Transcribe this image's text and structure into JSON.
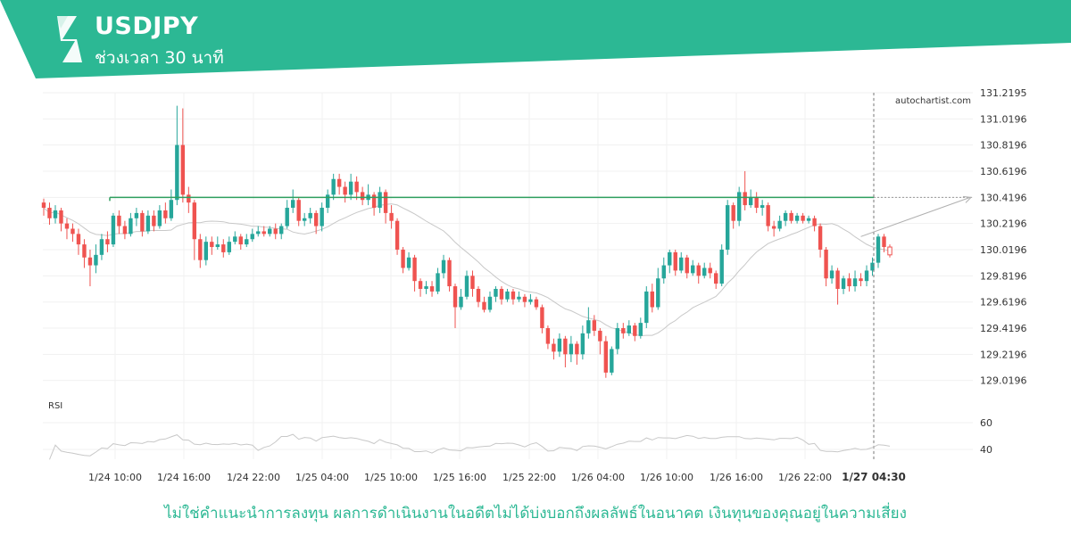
{
  "header": {
    "symbol": "USDJPY",
    "timeframe": "ช่วงเวลา 30 นาที",
    "accent_color": "#2cb894",
    "logo_icon": "autochartist-s-logo-icon"
  },
  "watermark": "autochartist.com",
  "disclaimer": "ไม่ใช่คำแนะนำการลงทุน ผลการดำเนินงานในอดีตไม่ได้บ่งบอกถึงผลลัพธ์ในอนาคต เงินทุนของคุณอยู่ในความเสี่ยง",
  "chart_data": {
    "type": "candlestick",
    "series_colors": {
      "up": "#26a69a",
      "down": "#ef5350",
      "ma": "#c8c8c8",
      "level": "#2e9e5e"
    },
    "y_axis": {
      "ticks": [
        131.2195,
        131.0196,
        130.8196,
        130.6196,
        130.4196,
        130.2196,
        130.0196,
        129.8196,
        129.6196,
        129.4196,
        129.2196,
        129.0196
      ],
      "range": [
        128.98,
        131.22
      ]
    },
    "x_axis": {
      "ticks": [
        "1/24 10:00",
        "1/24 16:00",
        "1/24 22:00",
        "1/25 04:00",
        "1/25 10:00",
        "1/25 16:00",
        "1/25 22:00",
        "1/26 04:00",
        "1/26 10:00",
        "1/26 16:00",
        "1/26 22:00",
        "1/27 04:30"
      ],
      "highlight": "1/27 04:30"
    },
    "resistance_level": 130.4196,
    "forecast_target": 130.4196,
    "rsi": {
      "label": "RSI",
      "ticks": [
        60,
        40
      ],
      "range": [
        30,
        70
      ]
    },
    "candles": [
      [
        130.38,
        130.34,
        130.41,
        130.28
      ],
      [
        130.34,
        130.26,
        130.38,
        130.21
      ],
      [
        130.26,
        130.32,
        130.36,
        130.22
      ],
      [
        130.32,
        130.22,
        130.34,
        130.16
      ],
      [
        130.22,
        130.18,
        130.26,
        130.1
      ],
      [
        130.18,
        130.14,
        130.22,
        130.08
      ],
      [
        130.14,
        130.06,
        130.18,
        129.98
      ],
      [
        130.06,
        129.96,
        130.1,
        129.88
      ],
      [
        129.96,
        129.9,
        130.02,
        129.74
      ],
      [
        129.9,
        129.98,
        130.06,
        129.84
      ],
      [
        129.98,
        130.1,
        130.14,
        129.94
      ],
      [
        130.1,
        130.06,
        130.16,
        130.0
      ],
      [
        130.06,
        130.28,
        130.3,
        130.04
      ],
      [
        130.28,
        130.2,
        130.32,
        130.14
      ],
      [
        130.2,
        130.14,
        130.24,
        130.1
      ],
      [
        130.14,
        130.26,
        130.3,
        130.12
      ],
      [
        130.26,
        130.3,
        130.34,
        130.2
      ],
      [
        130.3,
        130.16,
        130.32,
        130.12
      ],
      [
        130.16,
        130.28,
        130.32,
        130.14
      ],
      [
        130.28,
        130.2,
        130.32,
        130.16
      ],
      [
        130.2,
        130.32,
        130.36,
        130.18
      ],
      [
        130.32,
        130.26,
        130.38,
        130.22
      ],
      [
        130.26,
        130.4,
        130.48,
        130.24
      ],
      [
        130.4,
        130.82,
        131.12,
        130.36
      ],
      [
        130.82,
        130.44,
        131.1,
        130.38
      ],
      [
        130.44,
        130.38,
        130.5,
        130.3
      ],
      [
        130.38,
        130.1,
        130.4,
        129.94
      ],
      [
        130.1,
        129.94,
        130.14,
        129.88
      ],
      [
        129.94,
        130.08,
        130.12,
        129.9
      ],
      [
        130.08,
        130.04,
        130.12,
        129.98
      ],
      [
        130.04,
        130.06,
        130.12,
        130.02
      ],
      [
        130.06,
        130.0,
        130.1,
        129.96
      ],
      [
        130.0,
        130.08,
        130.12,
        129.98
      ],
      [
        130.08,
        130.12,
        130.16,
        130.06
      ],
      [
        130.12,
        130.06,
        130.14,
        130.02
      ],
      [
        130.06,
        130.1,
        130.14,
        130.04
      ],
      [
        130.1,
        130.14,
        130.18,
        130.08
      ],
      [
        130.14,
        130.16,
        130.2,
        130.12
      ],
      [
        130.16,
        130.14,
        130.2,
        130.12
      ],
      [
        130.14,
        130.18,
        130.2,
        130.12
      ],
      [
        130.18,
        130.14,
        130.22,
        130.1
      ],
      [
        130.14,
        130.2,
        130.22,
        130.1
      ],
      [
        130.2,
        130.34,
        130.4,
        130.18
      ],
      [
        130.34,
        130.4,
        130.48,
        130.3
      ],
      [
        130.4,
        130.24,
        130.42,
        130.2
      ],
      [
        130.24,
        130.26,
        130.3,
        130.2
      ],
      [
        130.26,
        130.3,
        130.34,
        130.22
      ],
      [
        130.3,
        130.2,
        130.32,
        130.14
      ],
      [
        130.2,
        130.34,
        130.38,
        130.16
      ],
      [
        130.34,
        130.44,
        130.48,
        130.3
      ],
      [
        130.44,
        130.56,
        130.6,
        130.4
      ],
      [
        130.56,
        130.5,
        130.6,
        130.44
      ],
      [
        130.5,
        130.44,
        130.54,
        130.38
      ],
      [
        130.44,
        130.54,
        130.6,
        130.4
      ],
      [
        130.54,
        130.46,
        130.58,
        130.4
      ],
      [
        130.46,
        130.4,
        130.5,
        130.36
      ],
      [
        130.4,
        130.44,
        130.52,
        130.36
      ],
      [
        130.44,
        130.34,
        130.46,
        130.28
      ],
      [
        130.34,
        130.46,
        130.5,
        130.3
      ],
      [
        130.46,
        130.3,
        130.48,
        130.22
      ],
      [
        130.3,
        130.24,
        130.36,
        130.18
      ],
      [
        130.24,
        130.02,
        130.26,
        129.98
      ],
      [
        130.02,
        129.88,
        130.04,
        129.84
      ],
      [
        129.88,
        129.96,
        130.0,
        129.86
      ],
      [
        129.96,
        129.78,
        129.98,
        129.7
      ],
      [
        129.78,
        129.72,
        129.8,
        129.66
      ],
      [
        129.72,
        129.74,
        129.78,
        129.68
      ],
      [
        129.74,
        129.7,
        129.78,
        129.66
      ],
      [
        129.7,
        129.84,
        129.88,
        129.68
      ],
      [
        129.84,
        129.94,
        129.98,
        129.8
      ],
      [
        129.94,
        129.74,
        129.96,
        129.7
      ],
      [
        129.74,
        129.58,
        129.76,
        129.42
      ],
      [
        129.58,
        129.66,
        129.72,
        129.56
      ],
      [
        129.66,
        129.82,
        129.86,
        129.64
      ],
      [
        129.82,
        129.72,
        129.86,
        129.66
      ],
      [
        129.72,
        129.62,
        129.74,
        129.58
      ],
      [
        129.62,
        129.56,
        129.66,
        129.54
      ],
      [
        129.56,
        129.66,
        129.7,
        129.54
      ],
      [
        129.66,
        129.72,
        129.74,
        129.62
      ],
      [
        129.72,
        129.64,
        129.74,
        129.6
      ],
      [
        129.64,
        129.7,
        129.72,
        129.62
      ],
      [
        129.7,
        129.64,
        129.72,
        129.6
      ],
      [
        129.64,
        129.66,
        129.7,
        129.62
      ],
      [
        129.66,
        129.62,
        129.68,
        129.58
      ],
      [
        129.62,
        129.64,
        129.68,
        129.6
      ],
      [
        129.64,
        129.58,
        129.66,
        129.56
      ],
      [
        129.58,
        129.42,
        129.6,
        129.38
      ],
      [
        129.42,
        129.3,
        129.44,
        129.26
      ],
      [
        129.3,
        129.24,
        129.34,
        129.18
      ],
      [
        129.24,
        129.34,
        129.38,
        129.2
      ],
      [
        129.34,
        129.22,
        129.36,
        129.12
      ],
      [
        129.22,
        129.3,
        129.36,
        129.16
      ],
      [
        129.3,
        129.22,
        129.32,
        129.14
      ],
      [
        129.22,
        129.38,
        129.44,
        129.18
      ],
      [
        129.38,
        129.48,
        129.58,
        129.34
      ],
      [
        129.48,
        129.4,
        129.52,
        129.36
      ],
      [
        129.4,
        129.32,
        129.42,
        129.22
      ],
      [
        129.32,
        129.08,
        129.36,
        129.04
      ],
      [
        129.08,
        129.26,
        129.28,
        129.06
      ],
      [
        129.26,
        129.42,
        129.46,
        129.22
      ],
      [
        129.42,
        129.38,
        129.46,
        129.34
      ],
      [
        129.38,
        129.44,
        129.48,
        129.36
      ],
      [
        129.44,
        129.36,
        129.46,
        129.32
      ],
      [
        129.36,
        129.46,
        129.5,
        129.34
      ],
      [
        129.46,
        129.7,
        129.74,
        129.42
      ],
      [
        129.7,
        129.58,
        129.76,
        129.54
      ],
      [
        129.58,
        129.8,
        129.88,
        129.56
      ],
      [
        129.8,
        129.9,
        129.96,
        129.76
      ],
      [
        129.9,
        130.0,
        130.02,
        129.84
      ],
      [
        130.0,
        129.86,
        130.02,
        129.82
      ],
      [
        129.86,
        129.96,
        130.0,
        129.84
      ],
      [
        129.96,
        129.84,
        129.98,
        129.8
      ],
      [
        129.84,
        129.9,
        129.94,
        129.82
      ],
      [
        129.9,
        129.82,
        129.92,
        129.76
      ],
      [
        129.82,
        129.88,
        129.92,
        129.8
      ],
      [
        129.88,
        129.84,
        129.92,
        129.8
      ],
      [
        129.84,
        129.76,
        129.86,
        129.72
      ],
      [
        129.76,
        130.02,
        130.06,
        129.74
      ],
      [
        130.02,
        130.36,
        130.4,
        129.98
      ],
      [
        130.36,
        130.24,
        130.38,
        130.18
      ],
      [
        130.24,
        130.46,
        130.5,
        130.2
      ],
      [
        130.46,
        130.36,
        130.62,
        130.32
      ],
      [
        130.36,
        130.42,
        130.48,
        130.34
      ],
      [
        130.42,
        130.34,
        130.46,
        130.3
      ],
      [
        130.34,
        130.36,
        130.4,
        130.28
      ],
      [
        130.36,
        130.2,
        130.38,
        130.16
      ],
      [
        130.2,
        130.18,
        130.24,
        130.12
      ],
      [
        130.18,
        130.24,
        130.28,
        130.16
      ],
      [
        130.24,
        130.3,
        130.32,
        130.2
      ],
      [
        130.3,
        130.24,
        130.32,
        130.22
      ],
      [
        130.24,
        130.28,
        130.3,
        130.22
      ],
      [
        130.28,
        130.24,
        130.3,
        130.22
      ],
      [
        130.24,
        130.26,
        130.28,
        130.22
      ],
      [
        130.26,
        130.2,
        130.28,
        130.16
      ],
      [
        130.2,
        130.02,
        130.22,
        129.96
      ],
      [
        130.02,
        129.8,
        130.04,
        129.74
      ],
      [
        129.8,
        129.86,
        129.9,
        129.76
      ],
      [
        129.86,
        129.72,
        129.88,
        129.6
      ],
      [
        129.72,
        129.8,
        129.82,
        129.68
      ],
      [
        129.8,
        129.74,
        129.84,
        129.7
      ],
      [
        129.74,
        129.8,
        129.86,
        129.7
      ],
      [
        129.8,
        129.78,
        129.84,
        129.74
      ],
      [
        129.78,
        129.86,
        129.9,
        129.74
      ],
      [
        129.86,
        129.92,
        129.96,
        129.82
      ],
      [
        129.92,
        130.12,
        130.14,
        129.88
      ],
      [
        130.12,
        130.04,
        130.14,
        130.0
      ],
      [
        130.04,
        129.98,
        130.06,
        129.96
      ]
    ]
  }
}
